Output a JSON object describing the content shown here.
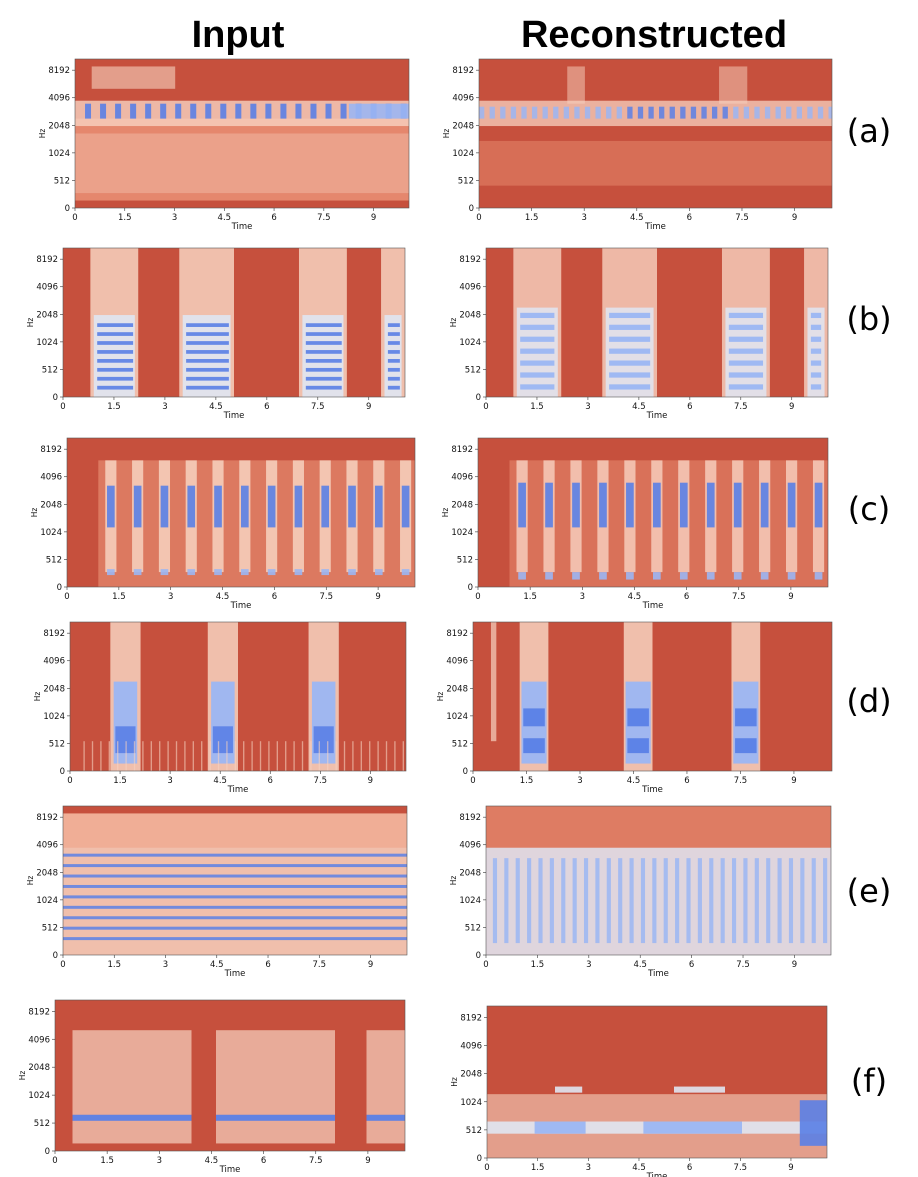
{
  "columns": [
    "Input",
    "Reconstructed"
  ],
  "row_labels": [
    "(a)",
    "(b)",
    "(c)",
    "(d)",
    "(e)",
    "(f)"
  ],
  "axis": {
    "ylabel": "Hz",
    "xlabel": "Time",
    "y_ticks": [
      "0",
      "512",
      "1024",
      "2048",
      "4096",
      "8192"
    ],
    "x_ticks": [
      "0",
      "1.5",
      "3",
      "4.5",
      "6",
      "7.5",
      "9"
    ]
  },
  "colors": {
    "background": "#c6503d",
    "mid": "#ef9a7d",
    "light": "#f7d2c0",
    "pale": "#dfe5f2",
    "blue_light": "#9bb6f3",
    "blue": "#5a80e6",
    "blue_dark": "#2c43c4"
  },
  "chart_data": [
    {
      "type": "heatmap",
      "row": "(a)",
      "column": "Input",
      "xlabel": "Time",
      "ylabel": "Hz",
      "xlim": [
        0,
        10
      ],
      "y_ticks": [
        0,
        512,
        1024,
        2048,
        4096,
        8192
      ],
      "x_ticks": [
        0,
        1.5,
        3,
        4.5,
        6,
        7.5,
        9
      ]
    },
    {
      "type": "heatmap",
      "row": "(a)",
      "column": "Reconstructed",
      "xlabel": "Time",
      "ylabel": "Hz",
      "xlim": [
        0,
        10
      ],
      "y_ticks": [
        0,
        512,
        1024,
        2048,
        4096,
        8192
      ],
      "x_ticks": [
        0,
        1.5,
        3,
        4.5,
        6,
        7.5,
        9
      ]
    },
    {
      "type": "heatmap",
      "row": "(b)",
      "column": "Input",
      "xlabel": "Time",
      "ylabel": "Hz",
      "xlim": [
        0,
        10
      ],
      "y_ticks": [
        0,
        512,
        1024,
        2048,
        4096,
        8192
      ],
      "x_ticks": [
        0,
        1.5,
        3,
        4.5,
        6,
        7.5,
        9
      ]
    },
    {
      "type": "heatmap",
      "row": "(b)",
      "column": "Reconstructed",
      "xlabel": "Time",
      "ylabel": "Hz",
      "xlim": [
        0,
        10
      ],
      "y_ticks": [
        0,
        512,
        1024,
        2048,
        4096,
        8192
      ],
      "x_ticks": [
        0,
        1.5,
        3,
        4.5,
        6,
        7.5,
        9
      ]
    },
    {
      "type": "heatmap",
      "row": "(c)",
      "column": "Input",
      "xlabel": "Time",
      "ylabel": "Hz",
      "xlim": [
        0,
        10
      ],
      "y_ticks": [
        0,
        512,
        1024,
        2048,
        4096,
        8192
      ],
      "x_ticks": [
        0,
        1.5,
        3,
        4.5,
        6,
        7.5,
        9
      ]
    },
    {
      "type": "heatmap",
      "row": "(c)",
      "column": "Reconstructed",
      "xlabel": "Time",
      "ylabel": "Hz",
      "xlim": [
        0,
        10
      ],
      "y_ticks": [
        0,
        512,
        1024,
        2048,
        4096,
        8192
      ],
      "x_ticks": [
        0,
        1.5,
        3,
        4.5,
        6,
        7.5,
        9
      ]
    },
    {
      "type": "heatmap",
      "row": "(d)",
      "column": "Input",
      "xlabel": "Time",
      "ylabel": "Hz",
      "xlim": [
        0,
        10
      ],
      "y_ticks": [
        0,
        512,
        1024,
        2048,
        4096,
        8192
      ],
      "x_ticks": [
        0,
        1.5,
        3,
        4.5,
        6,
        7.5,
        9
      ]
    },
    {
      "type": "heatmap",
      "row": "(d)",
      "column": "Reconstructed",
      "xlabel": "Time",
      "ylabel": "Hz",
      "xlim": [
        0,
        10
      ],
      "y_ticks": [
        0,
        512,
        1024,
        2048,
        4096,
        8192
      ],
      "x_ticks": [
        0,
        1.5,
        3,
        4.5,
        6,
        7.5,
        9
      ]
    },
    {
      "type": "heatmap",
      "row": "(e)",
      "column": "Input",
      "xlabel": "Time",
      "ylabel": "Hz",
      "xlim": [
        0,
        10
      ],
      "y_ticks": [
        0,
        512,
        1024,
        2048,
        4096,
        8192
      ],
      "x_ticks": [
        0,
        1.5,
        3,
        4.5,
        6,
        7.5,
        9
      ]
    },
    {
      "type": "heatmap",
      "row": "(e)",
      "column": "Reconstructed",
      "xlabel": "Time",
      "ylabel": "Hz",
      "xlim": [
        0,
        10
      ],
      "y_ticks": [
        0,
        512,
        1024,
        2048,
        4096,
        8192
      ],
      "x_ticks": [
        0,
        1.5,
        3,
        4.5,
        6,
        7.5,
        9
      ]
    },
    {
      "type": "heatmap",
      "row": "(f)",
      "column": "Input",
      "xlabel": "Time",
      "ylabel": "Hz",
      "xlim": [
        0,
        10
      ],
      "y_ticks": [
        0,
        512,
        1024,
        2048,
        4096,
        8192
      ],
      "x_ticks": [
        0,
        1.5,
        3,
        4.5,
        6,
        7.5,
        9
      ]
    },
    {
      "type": "heatmap",
      "row": "(f)",
      "column": "Reconstructed",
      "xlabel": "Time",
      "ylabel": "Hz",
      "xlim": [
        0,
        10
      ],
      "y_ticks": [
        0,
        512,
        1024,
        2048,
        4096,
        8192
      ],
      "x_ticks": [
        0,
        1.5,
        3,
        4.5,
        6,
        7.5,
        9
      ]
    }
  ]
}
